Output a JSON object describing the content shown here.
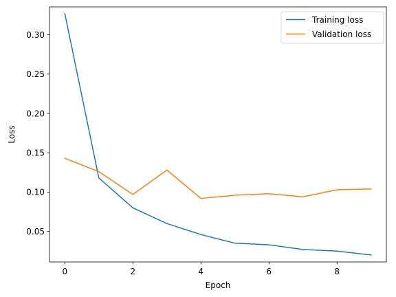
{
  "chart_data": {
    "type": "line",
    "xlabel": "Epoch",
    "ylabel": "Loss",
    "x": [
      0,
      1,
      2,
      3,
      4,
      5,
      6,
      7,
      8,
      9
    ],
    "xlim": [
      -0.45,
      9.45
    ],
    "ylim": [
      0.0112,
      0.3355
    ],
    "xticks": [
      0,
      2,
      4,
      6,
      8
    ],
    "yticks": [
      0.05,
      0.1,
      0.15,
      0.2,
      0.25,
      0.3
    ],
    "ytick_labels": [
      "0.05",
      "0.10",
      "0.15",
      "0.20",
      "0.25",
      "0.30"
    ],
    "grid": false,
    "legend_position": "top-right",
    "series": [
      {
        "name": "Training loss",
        "color": "#1f77b4",
        "values": [
          0.327,
          0.118,
          0.08,
          0.06,
          0.046,
          0.035,
          0.033,
          0.027,
          0.025,
          0.02
        ]
      },
      {
        "name": "Validation loss",
        "color": "#ff7f0e",
        "values": [
          0.143,
          0.126,
          0.097,
          0.128,
          0.092,
          0.096,
          0.098,
          0.094,
          0.103,
          0.104
        ]
      }
    ]
  }
}
